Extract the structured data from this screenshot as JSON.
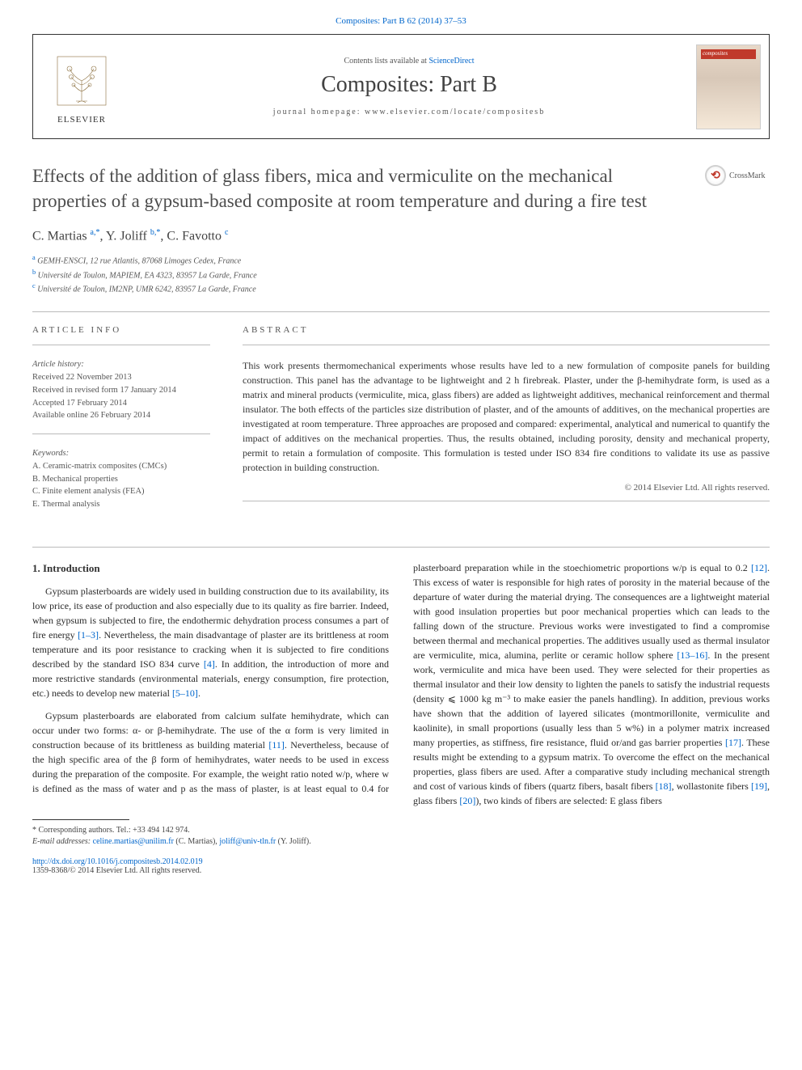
{
  "top_citation": "Composites: Part B 62 (2014) 37–53",
  "header": {
    "contents_prefix": "Contents lists available at ",
    "contents_link": "ScienceDirect",
    "journal": "Composites: Part B",
    "homepage": "journal homepage: www.elsevier.com/locate/compositesb",
    "publisher": "ELSEVIER",
    "cover_label": "composites"
  },
  "crossmark_label": "CrossMark",
  "title": "Effects of the addition of glass fibers, mica and vermiculite on the mechanical properties of a gypsum-based composite at room temperature and during a fire test",
  "authors_html": "C. Martias <sup>a,*</sup>, Y. Joliff <sup>b,*</sup>, C. Favotto <sup>c</sup>",
  "affiliations": {
    "a": "GEMH-ENSCI, 12 rue Atlantis, 87068 Limoges Cedex, France",
    "b": "Université de Toulon, MAPIEM, EA 4323, 83957 La Garde, France",
    "c": "Université de Toulon, IM2NP, UMR 6242, 83957 La Garde, France"
  },
  "article_info": {
    "heading": "ARTICLE INFO",
    "history_label": "Article history:",
    "received": "Received 22 November 2013",
    "revised": "Received in revised form 17 January 2014",
    "accepted": "Accepted 17 February 2014",
    "online": "Available online 26 February 2014",
    "keywords_label": "Keywords:",
    "kw1": "A. Ceramic-matrix composites (CMCs)",
    "kw2": "B. Mechanical properties",
    "kw3": "C. Finite element analysis (FEA)",
    "kw4": "E. Thermal analysis"
  },
  "abstract": {
    "heading": "ABSTRACT",
    "text": "This work presents thermomechanical experiments whose results have led to a new formulation of composite panels for building construction. This panel has the advantage to be lightweight and 2 h firebreak. Plaster, under the β-hemihydrate form, is used as a matrix and mineral products (vermiculite, mica, glass fibers) are added as lightweight additives, mechanical reinforcement and thermal insulator. The both effects of the particles size distribution of plaster, and of the amounts of additives, on the mechanical properties are investigated at room temperature. Three approaches are proposed and compared: experimental, analytical and numerical to quantify the impact of additives on the mechanical properties. Thus, the results obtained, including porosity, density and mechanical property, permit to retain a formulation of composite. This formulation is tested under ISO 834 fire conditions to validate its use as passive protection in building construction.",
    "copyright": "© 2014 Elsevier Ltd. All rights reserved."
  },
  "intro": {
    "heading": "1. Introduction",
    "p1a": "Gypsum plasterboards are widely used in building construction due to its availability, its low price, its ease of production and also especially due to its quality as fire barrier. Indeed, when gypsum is subjected to fire, the endothermic dehydration process consumes a part of fire energy ",
    "c1": "[1–3]",
    "p1b": ". Nevertheless, the main disadvantage of plaster are its brittleness at room temperature and its poor resistance to cracking when it is subjected to fire conditions described by the standard ISO 834 curve ",
    "c2": "[4]",
    "p1c": ". In addition, the introduction of more and more restrictive standards (environmental materials, energy consumption, fire protection, etc.) needs to develop new material ",
    "c3": "[5–10]",
    "p1d": ".",
    "p2a": "Gypsum plasterboards are elaborated from calcium sulfate hemihydrate, which can occur under two forms: α- or β-hemihydrate. The use of the α form is very limited in construction because of its brittleness as building material ",
    "c4": "[11]",
    "p2b": ". Nevertheless, because of the high specific area of the β form of hemihydrates, water needs to be used in excess during the preparation of the composite. For example, the weight ratio noted w/p, where w is defined as the mass of water and p as the mass of plaster, is at least equal to 0.4 for plasterboard preparation while in the stoechiometric proportions w/p is equal to 0.2 ",
    "c5": "[12]",
    "p2c": ". This excess of water is responsible for high rates of porosity in the material because of the departure of water during the material drying. The consequences are a lightweight material with good insulation properties but poor mechanical properties which can leads to the falling down of the structure. Previous works were investigated to find a compromise between thermal and mechanical properties. The additives usually used as thermal insulator are vermiculite, mica, alumina, perlite or ceramic hollow sphere ",
    "c6": "[13–16]",
    "p2d": ". In the present work, vermiculite and mica have been used. They were selected for their properties as thermal insulator and their low density to lighten the panels to satisfy the industrial requests (density ⩽ 1000 kg m⁻³ to make easier the panels handling). In addition, previous works have shown that the addition of layered silicates (montmorillonite, vermiculite and kaolinite), in small proportions (usually less than 5 w%) in a polymer matrix increased many properties, as stiffness, fire resistance, fluid or/and gas barrier properties ",
    "c7": "[17]",
    "p2e": ". These results might be extending to a gypsum matrix. To overcome the effect on the mechanical properties, glass fibers are used. After a comparative study including mechanical strength and cost of various kinds of fibers (quartz fibers, basalt fibers ",
    "c8": "[18]",
    "p2f": ", wollastonite fibers ",
    "c9": "[19]",
    "p2g": ", glass fibers ",
    "c10": "[20]",
    "p2h": "), two kinds of fibers are selected: E glass fibers"
  },
  "footnotes": {
    "corr": "* Corresponding authors. Tel.: +33 494 142 974.",
    "email_label": "E-mail addresses: ",
    "email1": "celine.martias@unilim.fr",
    "email1_name": " (C. Martias), ",
    "email2": "joliff@univ-tln.fr",
    "email2_name": " (Y. Joliff)."
  },
  "doi": {
    "url": "http://dx.doi.org/10.1016/j.compositesb.2014.02.019",
    "issn": "1359-8368/© 2014 Elsevier Ltd. All rights reserved."
  },
  "colors": {
    "link": "#0066cc",
    "text": "#2a2a2a",
    "muted": "#555555",
    "border": "#333333",
    "crossmark": "#c0392b"
  }
}
